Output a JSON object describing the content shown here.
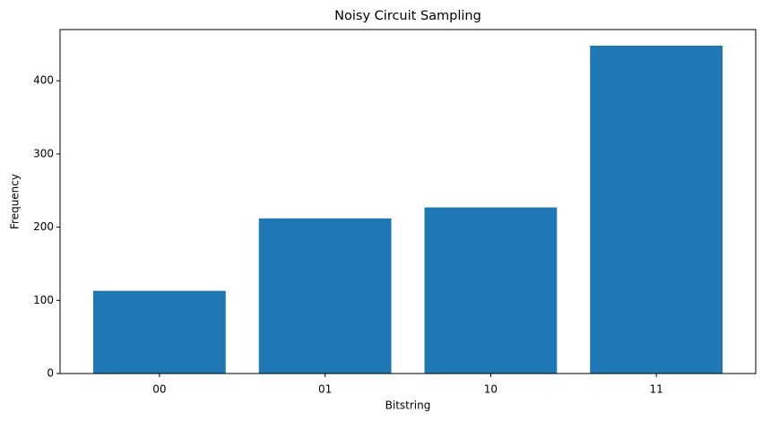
{
  "chart_data": {
    "type": "bar",
    "title": "Noisy Circuit Sampling",
    "x_label": "Bitstring",
    "y_label": "Frequency",
    "categories": [
      "00",
      "01",
      "10",
      "11"
    ],
    "values": [
      113,
      212,
      227,
      448
    ],
    "color": "#1f77b4",
    "ylim": [
      0,
      470
    ],
    "yticks": [
      0,
      100,
      200,
      300,
      400
    ],
    "grid": false
  }
}
